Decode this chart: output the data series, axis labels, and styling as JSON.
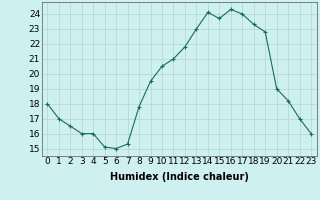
{
  "x": [
    0,
    1,
    2,
    3,
    4,
    5,
    6,
    7,
    8,
    9,
    10,
    11,
    12,
    13,
    14,
    15,
    16,
    17,
    18,
    19,
    20,
    21,
    22,
    23
  ],
  "y": [
    18.0,
    17.0,
    16.5,
    16.0,
    16.0,
    15.1,
    15.0,
    15.3,
    17.8,
    19.5,
    20.5,
    21.0,
    21.8,
    23.0,
    24.1,
    23.7,
    24.3,
    24.0,
    23.3,
    22.8,
    19.0,
    18.2,
    17.0,
    16.0
  ],
  "line_color": "#1a6b5a",
  "marker": "+",
  "marker_size": 3,
  "marker_linewidth": 0.8,
  "bg_color": "#cff0f0",
  "grid_color": "#b0d4d4",
  "xlabel": "Humidex (Indice chaleur)",
  "ylim": [
    14.5,
    24.8
  ],
  "xlim": [
    -0.5,
    23.5
  ],
  "yticks": [
    15,
    16,
    17,
    18,
    19,
    20,
    21,
    22,
    23,
    24
  ],
  "xticks": [
    0,
    1,
    2,
    3,
    4,
    5,
    6,
    7,
    8,
    9,
    10,
    11,
    12,
    13,
    14,
    15,
    16,
    17,
    18,
    19,
    20,
    21,
    22,
    23
  ],
  "xtick_labels": [
    "0",
    "1",
    "2",
    "3",
    "4",
    "5",
    "6",
    "7",
    "8",
    "9",
    "10",
    "11",
    "12",
    "13",
    "14",
    "15",
    "16",
    "17",
    "18",
    "19",
    "20",
    "21",
    "22",
    "23"
  ],
  "font_size": 6.5,
  "xlabel_fontsize": 7,
  "linewidth": 0.8
}
